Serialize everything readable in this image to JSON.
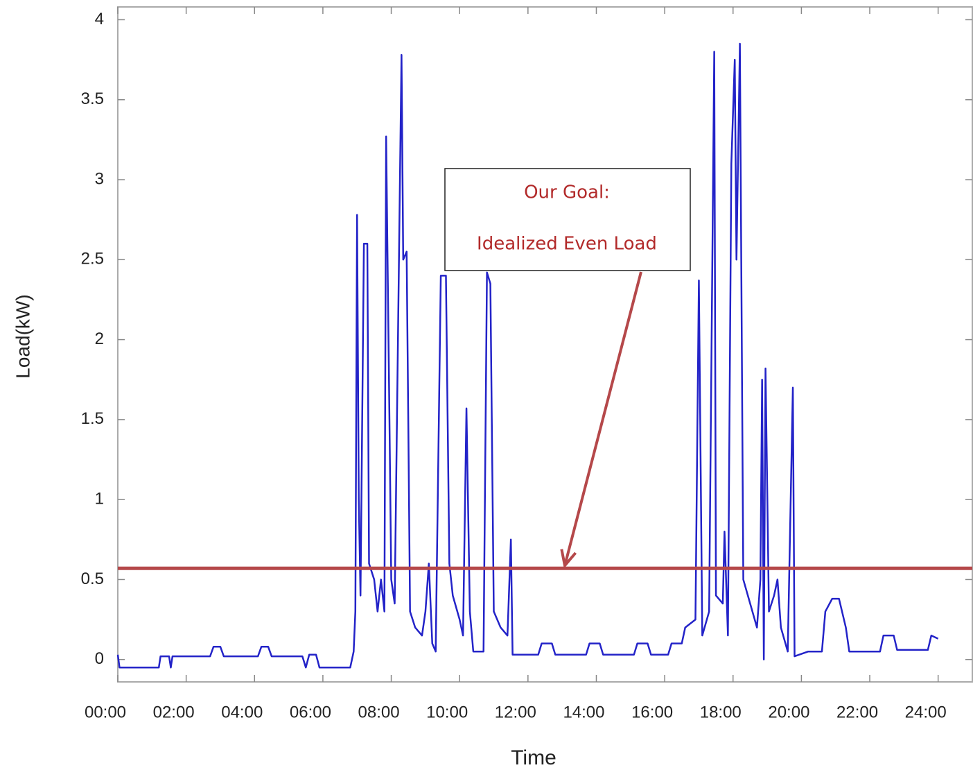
{
  "chart_data": {
    "type": "line",
    "xlabel": "Time",
    "ylabel": "Load(kW)",
    "xlim": [
      0,
      25
    ],
    "ylim": [
      -0.14,
      4.08
    ],
    "xticks": [
      {
        "value": 0,
        "label": "00:00"
      },
      {
        "value": 2,
        "label": "02:00"
      },
      {
        "value": 4,
        "label": "04:00"
      },
      {
        "value": 6,
        "label": "06:00"
      },
      {
        "value": 8,
        "label": "08:00"
      },
      {
        "value": 10,
        "label": "10:00"
      },
      {
        "value": 12,
        "label": "12:00"
      },
      {
        "value": 14,
        "label": "14:00"
      },
      {
        "value": 16,
        "label": "16:00"
      },
      {
        "value": 18,
        "label": "18:00"
      },
      {
        "value": 20,
        "label": "20:00"
      },
      {
        "value": 22,
        "label": "22:00"
      },
      {
        "value": 24,
        "label": "24:00"
      }
    ],
    "yticks": [
      0,
      0.5,
      1,
      1.5,
      2,
      2.5,
      3,
      3.5,
      4
    ],
    "grid": false,
    "reference_line": {
      "value": 0.57,
      "color": "#b5484a"
    },
    "annotation": {
      "lines": [
        "Our Goal:",
        "Idealized Even Load"
      ],
      "color": "#b22a2a"
    },
    "x": [
      0,
      0.05,
      1.2,
      1.25,
      1.5,
      1.55,
      1.6,
      2.7,
      2.8,
      3.0,
      3.1,
      4.1,
      4.2,
      4.4,
      4.5,
      5.4,
      5.5,
      5.6,
      5.8,
      5.9,
      6.8,
      6.9,
      6.95,
      7.0,
      7.05,
      7.1,
      7.2,
      7.3,
      7.35,
      7.5,
      7.6,
      7.7,
      7.8,
      7.85,
      7.95,
      8.0,
      8.1,
      8.3,
      8.35,
      8.45,
      8.5,
      8.55,
      8.7,
      8.9,
      9.0,
      9.1,
      9.2,
      9.3,
      9.45,
      9.6,
      9.7,
      9.8,
      10.0,
      10.1,
      10.2,
      10.3,
      10.4,
      10.7,
      10.8,
      10.9,
      11.0,
      11.2,
      11.4,
      11.5,
      11.55,
      12.3,
      12.4,
      12.7,
      12.8,
      13.7,
      13.8,
      14.1,
      14.2,
      15.1,
      15.2,
      15.5,
      15.6,
      16.1,
      16.2,
      16.5,
      16.6,
      16.9,
      17.0,
      17.1,
      17.3,
      17.45,
      17.5,
      17.7,
      17.75,
      17.85,
      17.95,
      18.05,
      18.1,
      18.2,
      18.3,
      18.5,
      18.7,
      18.8,
      18.85,
      18.9,
      18.95,
      19.05,
      19.2,
      19.3,
      19.4,
      19.6,
      19.75,
      19.8,
      20.2,
      20.6,
      20.7,
      20.9,
      21.1,
      21.3,
      21.4,
      22.3,
      22.4,
      22.7,
      22.8,
      23.7,
      23.8,
      24.0
    ],
    "series": [
      {
        "color": "#2323c8",
        "values": [
          0.03,
          -0.05,
          -0.05,
          0.02,
          0.02,
          -0.05,
          0.02,
          0.02,
          0.08,
          0.08,
          0.02,
          0.02,
          0.08,
          0.08,
          0.02,
          0.02,
          -0.05,
          0.03,
          0.03,
          -0.05,
          -0.05,
          0.05,
          0.3,
          2.78,
          1.0,
          0.4,
          2.6,
          2.6,
          0.6,
          0.5,
          0.3,
          0.5,
          0.3,
          3.27,
          1.45,
          0.5,
          0.35,
          3.78,
          2.5,
          2.55,
          1.45,
          0.3,
          0.2,
          0.15,
          0.3,
          0.6,
          0.1,
          0.05,
          2.4,
          2.4,
          0.6,
          0.4,
          0.25,
          0.15,
          1.57,
          0.3,
          0.05,
          0.05,
          2.42,
          2.35,
          0.3,
          0.2,
          0.15,
          0.75,
          0.03,
          0.03,
          0.1,
          0.1,
          0.03,
          0.03,
          0.1,
          0.1,
          0.03,
          0.03,
          0.1,
          0.1,
          0.03,
          0.03,
          0.1,
          0.1,
          0.2,
          0.25,
          2.37,
          0.15,
          0.3,
          3.8,
          0.4,
          0.35,
          0.8,
          0.15,
          3.1,
          3.75,
          2.5,
          3.85,
          0.5,
          0.35,
          0.2,
          0.5,
          1.75,
          0.0,
          1.82,
          0.3,
          0.4,
          0.5,
          0.2,
          0.05,
          1.7,
          0.02,
          0.05,
          0.05,
          0.3,
          0.38,
          0.38,
          0.2,
          0.05,
          0.05,
          0.15,
          0.15,
          0.06,
          0.06,
          0.15,
          0.13
        ]
      }
    ]
  }
}
